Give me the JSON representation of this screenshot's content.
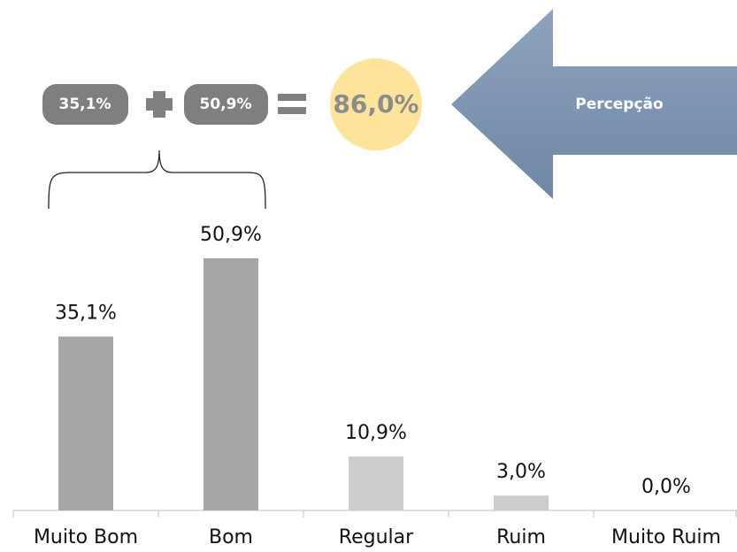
{
  "chart_data": {
    "type": "bar",
    "categories": [
      "Muito Bom",
      "Bom",
      "Regular",
      "Ruim",
      "Muito Ruim"
    ],
    "values": [
      35.1,
      50.9,
      10.9,
      3.0,
      0.0
    ],
    "value_labels": [
      "35,1%",
      "50,9%",
      "10,9%",
      "3,0%",
      "0,0%"
    ],
    "colors": [
      "#a6a6a6",
      "#a6a6a6",
      "#cccccc",
      "#cccccc",
      "#cccccc"
    ],
    "ylim": [
      0,
      60
    ],
    "annotations": {
      "terms": [
        "35,1%",
        "50,9%"
      ],
      "total": "86,0%",
      "arrow_label": "Percepção"
    }
  }
}
